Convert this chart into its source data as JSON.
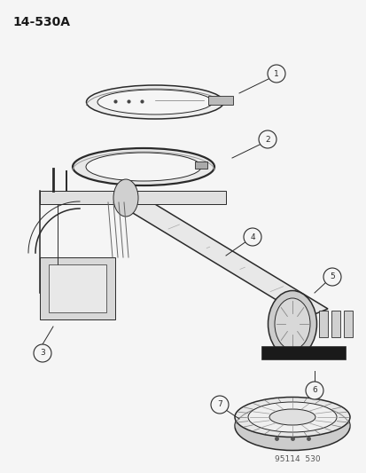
{
  "title": "14-530A",
  "footer": "95114  530",
  "background_color": "#f5f5f5",
  "line_color": "#2a2a2a",
  "text_color": "#1a1a1a",
  "fig_w": 4.14,
  "fig_h": 5.33,
  "dpi": 100
}
